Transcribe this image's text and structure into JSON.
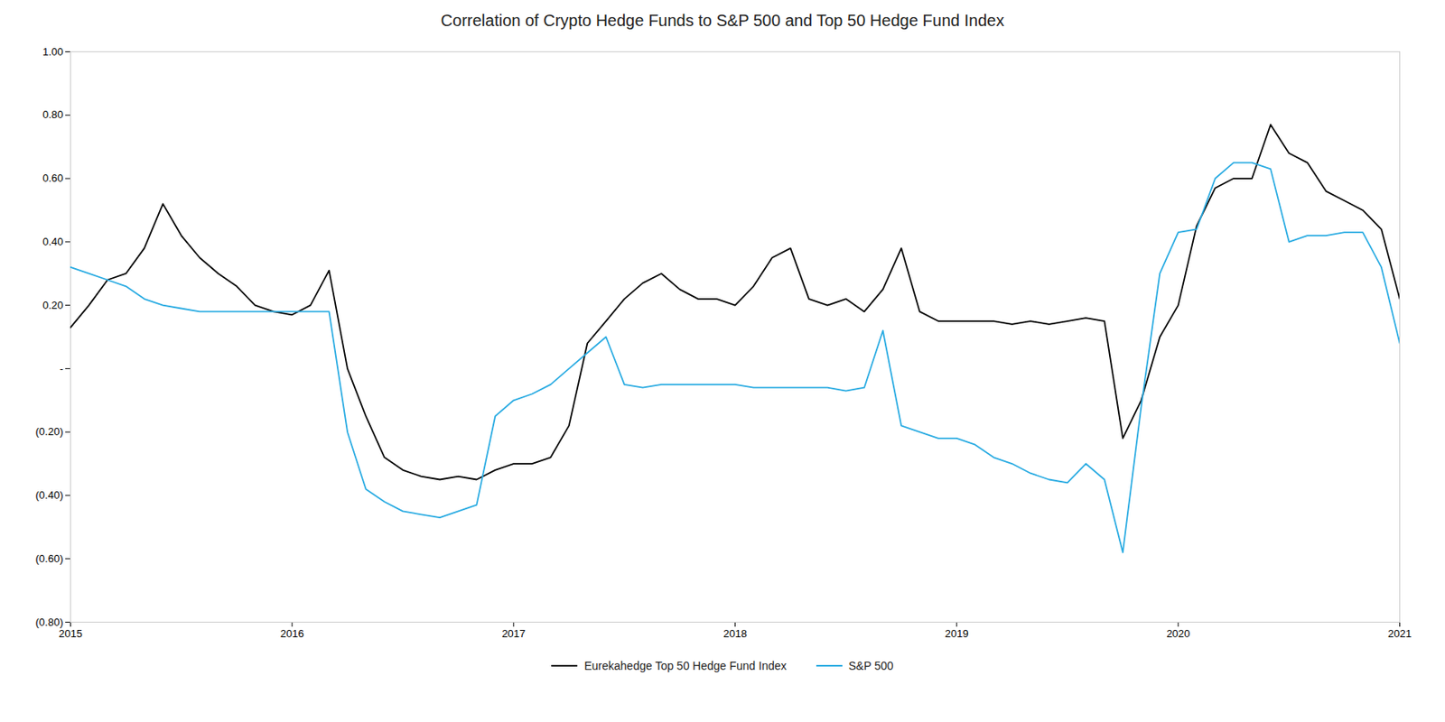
{
  "chart_data": {
    "type": "line",
    "title": "Correlation of Crypto Hedge Funds to S&P 500 and Top 50 Hedge Fund Index",
    "x": [
      2015.0,
      2015.083,
      2015.167,
      2015.25,
      2015.333,
      2015.417,
      2015.5,
      2015.583,
      2015.667,
      2015.75,
      2015.833,
      2015.917,
      2016.0,
      2016.083,
      2016.167,
      2016.25,
      2016.333,
      2016.417,
      2016.5,
      2016.583,
      2016.667,
      2016.75,
      2016.833,
      2016.917,
      2017.0,
      2017.083,
      2017.167,
      2017.25,
      2017.333,
      2017.417,
      2017.5,
      2017.583,
      2017.667,
      2017.75,
      2017.833,
      2017.917,
      2018.0,
      2018.083,
      2018.167,
      2018.25,
      2018.333,
      2018.417,
      2018.5,
      2018.583,
      2018.667,
      2018.75,
      2018.833,
      2018.917,
      2019.0,
      2019.083,
      2019.167,
      2019.25,
      2019.333,
      2019.417,
      2019.5,
      2019.583,
      2019.667,
      2019.75,
      2019.833,
      2019.917,
      2020.0,
      2020.083,
      2020.167,
      2020.25,
      2020.333,
      2020.417,
      2020.5,
      2020.583,
      2020.667,
      2020.75,
      2020.833,
      2020.917,
      2021.0
    ],
    "series": [
      {
        "name": "Eurekahedge Top 50 Hedge Fund Index",
        "color": "#000000",
        "values": [
          0.13,
          0.2,
          0.28,
          0.3,
          0.38,
          0.52,
          0.42,
          0.35,
          0.3,
          0.26,
          0.2,
          0.18,
          0.17,
          0.2,
          0.31,
          0.0,
          -0.15,
          -0.28,
          -0.32,
          -0.34,
          -0.35,
          -0.34,
          -0.35,
          -0.32,
          -0.3,
          -0.3,
          -0.28,
          -0.18,
          0.08,
          0.15,
          0.22,
          0.27,
          0.3,
          0.25,
          0.22,
          0.22,
          0.2,
          0.26,
          0.35,
          0.38,
          0.22,
          0.2,
          0.22,
          0.18,
          0.25,
          0.38,
          0.18,
          0.15,
          0.15,
          0.15,
          0.15,
          0.14,
          0.15,
          0.14,
          0.15,
          0.16,
          0.15,
          -0.22,
          -0.1,
          0.1,
          0.2,
          0.45,
          0.57,
          0.6,
          0.6,
          0.77,
          0.68,
          0.65,
          0.56,
          0.53,
          0.5,
          0.44,
          0.22
        ]
      },
      {
        "name": "S&P 500",
        "color": "#29ABE2",
        "values": [
          0.32,
          0.3,
          0.28,
          0.26,
          0.22,
          0.2,
          0.19,
          0.18,
          0.18,
          0.18,
          0.18,
          0.18,
          0.18,
          0.18,
          0.18,
          -0.2,
          -0.38,
          -0.42,
          -0.45,
          -0.46,
          -0.47,
          -0.45,
          -0.43,
          -0.15,
          -0.1,
          -0.08,
          -0.05,
          0.0,
          0.05,
          0.1,
          -0.05,
          -0.06,
          -0.05,
          -0.05,
          -0.05,
          -0.05,
          -0.05,
          -0.06,
          -0.06,
          -0.06,
          -0.06,
          -0.06,
          -0.07,
          -0.06,
          0.12,
          -0.18,
          -0.2,
          -0.22,
          -0.22,
          -0.24,
          -0.28,
          -0.3,
          -0.33,
          -0.35,
          -0.36,
          -0.3,
          -0.35,
          -0.58,
          -0.12,
          0.3,
          0.43,
          0.44,
          0.6,
          0.65,
          0.65,
          0.63,
          0.4,
          0.42,
          0.42,
          0.43,
          0.43,
          0.32,
          0.08
        ]
      }
    ],
    "xlim": [
      2015,
      2021
    ],
    "xticks": [
      2015,
      2016,
      2017,
      2018,
      2019,
      2020,
      2021
    ],
    "ylim": [
      -0.8,
      1.0
    ],
    "yticks": [
      {
        "value": 1.0,
        "label": "1.00"
      },
      {
        "value": 0.8,
        "label": "0.80"
      },
      {
        "value": 0.6,
        "label": "0.60"
      },
      {
        "value": 0.4,
        "label": "0.40"
      },
      {
        "value": 0.2,
        "label": "0.20"
      },
      {
        "value": 0.0,
        "label": "-"
      },
      {
        "value": -0.2,
        "label": "(0.20)"
      },
      {
        "value": -0.4,
        "label": "(0.40)"
      },
      {
        "value": -0.6,
        "label": "(0.60)"
      },
      {
        "value": -0.8,
        "label": "(0.80)"
      }
    ],
    "grid": false,
    "legend": "bottom"
  }
}
